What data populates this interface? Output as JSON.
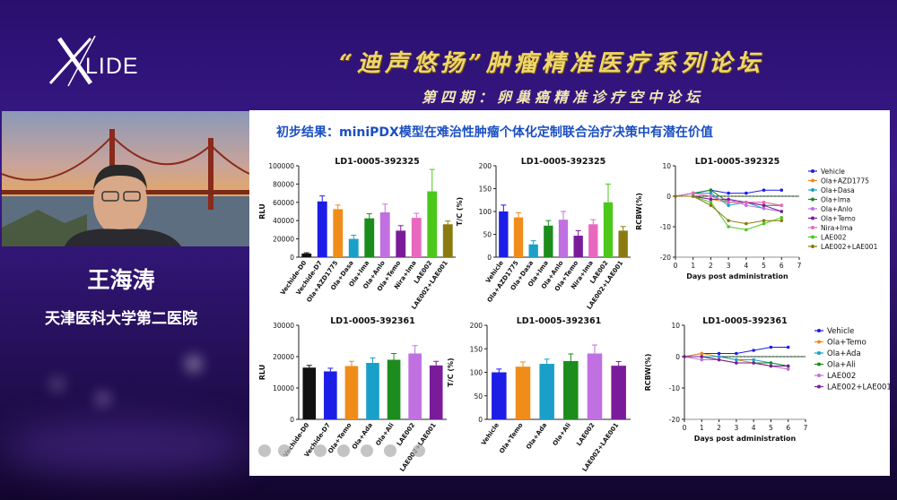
{
  "header": {
    "logo_text": "LIDE",
    "title": "“迪声悠扬”肿瘤精准医疗系列论坛",
    "subtitle": "第四期：卵巢癌精准诊疗空中论坛"
  },
  "speaker": {
    "name": "王海涛",
    "org": "天津医科大学第二医院"
  },
  "slide": {
    "title": "初步结果：miniPDX模型在难治性肿瘤个体化定制联合治疗决策中有潜在价值"
  },
  "chart_data": [
    {
      "type": "bar",
      "title": "LD1-0005-392325",
      "ylabel": "RLU",
      "ylim": [
        0,
        100000
      ],
      "yticks": [
        0,
        20000,
        40000,
        60000,
        80000,
        100000
      ],
      "categories": [
        "Vechide-D0",
        "Vechide-D7",
        "Ola+AZD1775",
        "Ola+Dasa",
        "Ola+Ima",
        "Ola+Anlo",
        "Ola+Temo",
        "Nira+Ima",
        "LAE002",
        "LAE002+LAE001"
      ],
      "values": [
        4000,
        61000,
        52500,
        20000,
        42500,
        49000,
        29000,
        43000,
        72000,
        36000
      ],
      "errors": [
        800,
        6000,
        4500,
        4000,
        5000,
        9000,
        5500,
        5000,
        24000,
        3500
      ],
      "colors": [
        "#111111",
        "#1d1de8",
        "#f08c1a",
        "#1aa0c8",
        "#1c8c1c",
        "#c070e0",
        "#7a1c9a",
        "#e868c0",
        "#4cc81a",
        "#8a7a10"
      ]
    },
    {
      "type": "bar",
      "title": "LD1-0005-392325",
      "ylabel": "T/C (%)",
      "ylim": [
        0,
        200
      ],
      "yticks": [
        0,
        50,
        100,
        150,
        200
      ],
      "categories": [
        "Vehicle",
        "Ola+AZD1775",
        "Ola+Dasa",
        "Ola+Ima",
        "Ola+Anlo",
        "Ola+Temo",
        "Nira+Ima",
        "LAE002",
        "LAE002+LAE001"
      ],
      "values": [
        100,
        87,
        28,
        69,
        82,
        47,
        72,
        120,
        58
      ],
      "errors": [
        14,
        10,
        8,
        11,
        18,
        11,
        10,
        40,
        9
      ],
      "colors": [
        "#1d1de8",
        "#f08c1a",
        "#1aa0c8",
        "#1c8c1c",
        "#c070e0",
        "#7a1c9a",
        "#e868c0",
        "#4cc81a",
        "#8a7a10"
      ]
    },
    {
      "type": "line",
      "title": "LD1-0005-392325",
      "ylabel": "RCBW(%)",
      "xlabel": "Days post administration",
      "xlim": [
        0,
        7
      ],
      "xticks": [
        0,
        1,
        2,
        3,
        4,
        5,
        6,
        7
      ],
      "ylim": [
        -20,
        10
      ],
      "yticks": [
        -20,
        -10,
        0,
        10
      ],
      "x": [
        0,
        1,
        2,
        3,
        4,
        5,
        6
      ],
      "series": [
        {
          "name": "Vehicle",
          "color": "#1d1de8",
          "values": [
            0,
            1,
            2,
            1,
            1,
            2,
            2
          ]
        },
        {
          "name": "Ola+AZD1775",
          "color": "#f08c1a",
          "values": [
            0,
            0,
            -1,
            -2,
            -2,
            -2,
            -3
          ]
        },
        {
          "name": "Ola+Dasa",
          "color": "#1aa0c8",
          "values": [
            0,
            1,
            1,
            -3,
            -2,
            -4,
            -5
          ]
        },
        {
          "name": "Ola+Ima",
          "color": "#1c8c1c",
          "values": [
            0,
            1,
            2,
            -2,
            -2,
            -3,
            -3
          ]
        },
        {
          "name": "Ola+Anlo",
          "color": "#c070e0",
          "values": [
            0,
            0,
            -1,
            -1,
            -3,
            -4,
            -5
          ]
        },
        {
          "name": "Ola+Temo",
          "color": "#7a1c9a",
          "values": [
            0,
            0,
            -1,
            -1,
            -2,
            -3,
            -5
          ]
        },
        {
          "name": "Nira+Ima",
          "color": "#e868c0",
          "values": [
            0,
            1,
            0,
            -2,
            -2,
            -2,
            -3
          ]
        },
        {
          "name": "LAE002",
          "color": "#4cc81a",
          "values": [
            0,
            0,
            -2,
            -10,
            -11,
            -9,
            -7
          ]
        },
        {
          "name": "LAE002+LAE001",
          "color": "#8a7a10",
          "values": [
            0,
            0,
            -3,
            -8,
            -9,
            -8,
            -8
          ]
        }
      ]
    },
    {
      "type": "bar",
      "title": "LD1-0005-392361",
      "ylabel": "RLU",
      "ylim": [
        0,
        30000
      ],
      "yticks": [
        0,
        10000,
        20000,
        30000
      ],
      "categories": [
        "Vechide-D0",
        "Vechide-D7",
        "Ola+Temo",
        "Ola+Ada",
        "Ola+Ali",
        "LAE002",
        "LAE002+LAE001"
      ],
      "values": [
        16500,
        15300,
        17000,
        18000,
        19000,
        21000,
        17200
      ],
      "errors": [
        700,
        1000,
        1500,
        1600,
        2000,
        2500,
        1300
      ],
      "colors": [
        "#111111",
        "#1d1de8",
        "#f08c1a",
        "#1aa0c8",
        "#1c8c1c",
        "#c070e0",
        "#7a1c9a"
      ]
    },
    {
      "type": "bar",
      "title": "LD1-0005-392361",
      "ylabel": "T/C (%)",
      "ylim": [
        0,
        200
      ],
      "yticks": [
        0,
        50,
        100,
        150,
        200
      ],
      "categories": [
        "Vehicle",
        "Ola+Temo",
        "Ola+Ada",
        "Ola+Ali",
        "LAE002",
        "LAE002+LAE001"
      ],
      "values": [
        100,
        112,
        118,
        124,
        140,
        114
      ],
      "errors": [
        7,
        10,
        10,
        15,
        18,
        9
      ],
      "colors": [
        "#1d1de8",
        "#f08c1a",
        "#1aa0c8",
        "#1c8c1c",
        "#c070e0",
        "#7a1c9a"
      ]
    },
    {
      "type": "line",
      "title": "LD1-0005-392361",
      "ylabel": "RCBW(%)",
      "xlabel": "Days post administration",
      "xlim": [
        0,
        7
      ],
      "xticks": [
        0,
        1,
        2,
        3,
        4,
        5,
        6,
        7
      ],
      "ylim": [
        -20,
        10
      ],
      "yticks": [
        -20,
        -10,
        0,
        10
      ],
      "x": [
        0,
        1,
        2,
        3,
        4,
        5,
        6
      ],
      "series": [
        {
          "name": "Vehicle",
          "color": "#1d1de8",
          "values": [
            0,
            1,
            1,
            1,
            2,
            3,
            3
          ]
        },
        {
          "name": "Ola+Temo",
          "color": "#f08c1a",
          "values": [
            0,
            1,
            0,
            -1,
            -2,
            -3,
            -4
          ]
        },
        {
          "name": "Ola+Ada",
          "color": "#1aa0c8",
          "values": [
            0,
            0,
            0,
            -1,
            -1,
            -2,
            -3
          ]
        },
        {
          "name": "Ola+Ali",
          "color": "#1c8c1c",
          "values": [
            0,
            0,
            -1,
            -2,
            -2,
            -2,
            -3
          ]
        },
        {
          "name": "LAE002",
          "color": "#c070e0",
          "values": [
            0,
            -1,
            -1,
            -2,
            -2,
            -3,
            -4
          ]
        },
        {
          "name": "LAE002+LAE001",
          "color": "#7a1c9a",
          "values": [
            0,
            0,
            -1,
            -2,
            -2,
            -3,
            -3
          ]
        }
      ]
    }
  ]
}
